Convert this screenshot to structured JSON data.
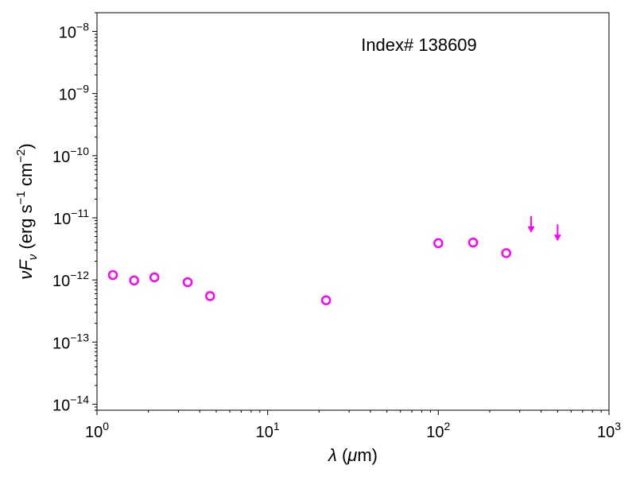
{
  "chart_data": {
    "type": "scatter",
    "title": "",
    "annotation": "Index# 138609",
    "xlabel": "λ (μm)",
    "ylabel": "νFν (erg s⁻¹ cm⁻²)",
    "xscale": "log",
    "yscale": "log",
    "xlim": [
      1,
      1000
    ],
    "ylim": [
      8e-15,
      2e-08
    ],
    "x_tick_labels": [
      "10^0",
      "10^1",
      "10^2",
      "10^3"
    ],
    "y_tick_labels": [
      "10^-14",
      "10^-13",
      "10^-12",
      "10^-11",
      "10^-10",
      "10^-9",
      "10^-8"
    ],
    "grid": false,
    "marker_color": "#ff00ff",
    "series": [
      {
        "marker": "open-circle",
        "points": [
          {
            "x": 1.24,
            "y": 1.2e-12
          },
          {
            "x": 1.65,
            "y": 9.8e-13
          },
          {
            "x": 2.17,
            "y": 1.1e-12
          },
          {
            "x": 3.4,
            "y": 9.2e-13
          },
          {
            "x": 4.6,
            "y": 5.5e-13
          },
          {
            "x": 22,
            "y": 4.7e-13
          },
          {
            "x": 100,
            "y": 3.9e-12
          },
          {
            "x": 160,
            "y": 4e-12
          },
          {
            "x": 250,
            "y": 2.7e-12
          }
        ]
      },
      {
        "marker": "upper-limit-arrow",
        "points": [
          {
            "x": 350,
            "y": 7.5e-12
          },
          {
            "x": 500,
            "y": 5.5e-12
          }
        ]
      }
    ]
  }
}
